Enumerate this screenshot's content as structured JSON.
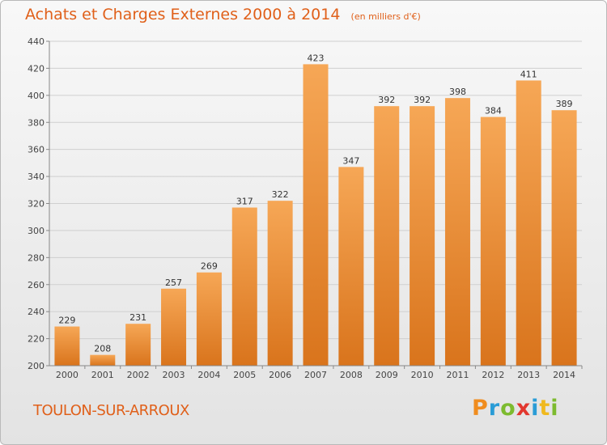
{
  "title": "Achats et Charges Externes 2000 à 2014",
  "unit": "(en milliers d'€)",
  "city": "TOULON-SUR-ARROUX",
  "logo": "Proxiti",
  "colors": {
    "bar_top": "#f6a756",
    "bar_bottom": "#d9741c",
    "title": "#e0601a",
    "grid": "#cfcfcf"
  },
  "chart_data": {
    "type": "bar",
    "categories": [
      "2000",
      "2001",
      "2002",
      "2003",
      "2004",
      "2005",
      "2006",
      "2007",
      "2008",
      "2009",
      "2010",
      "2011",
      "2012",
      "2013",
      "2014"
    ],
    "values": [
      229,
      208,
      231,
      257,
      269,
      317,
      322,
      423,
      347,
      392,
      392,
      398,
      384,
      411,
      389
    ],
    "data_labels": [
      "229",
      "208",
      "231",
      "257",
      "269",
      "317",
      "322",
      "423",
      "347",
      "392",
      "392",
      "398",
      "384",
      "411",
      "389"
    ],
    "title": "Achats et Charges Externes 2000 à 2014",
    "xlabel": "",
    "ylabel": "",
    "ylim": [
      200,
      440
    ],
    "yticks": [
      200,
      220,
      240,
      260,
      280,
      300,
      320,
      340,
      360,
      380,
      400,
      420,
      440
    ],
    "grid": true
  }
}
